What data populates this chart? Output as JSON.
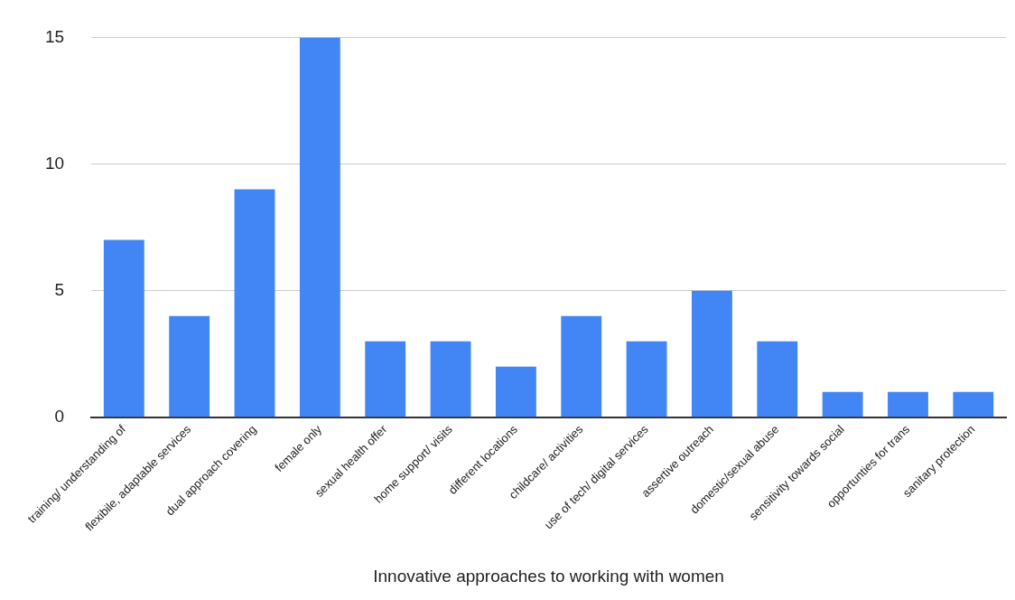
{
  "chart_data": {
    "type": "bar",
    "xlabel": "Innovative approaches to working with women",
    "categories": [
      "training/ understanding of",
      "flexibile, adaptable services",
      "dual approach covering",
      "female only",
      "sexual health offer",
      "home support/ visits",
      "different locations",
      "childcare/ activities",
      "use of tech/ digital services",
      "assertive outreach",
      "domestic/sexual abuse",
      "sensitivity towards social",
      "opportunties for trans",
      "sanitary protection"
    ],
    "values": [
      7,
      4,
      9,
      15,
      3,
      3,
      2,
      4,
      3,
      5,
      3,
      1,
      1,
      1
    ],
    "color": "#4285f4",
    "ylim": [
      0,
      15
    ],
    "yticks": [
      0,
      5,
      10,
      15
    ],
    "grid": "y",
    "legend": false
  }
}
